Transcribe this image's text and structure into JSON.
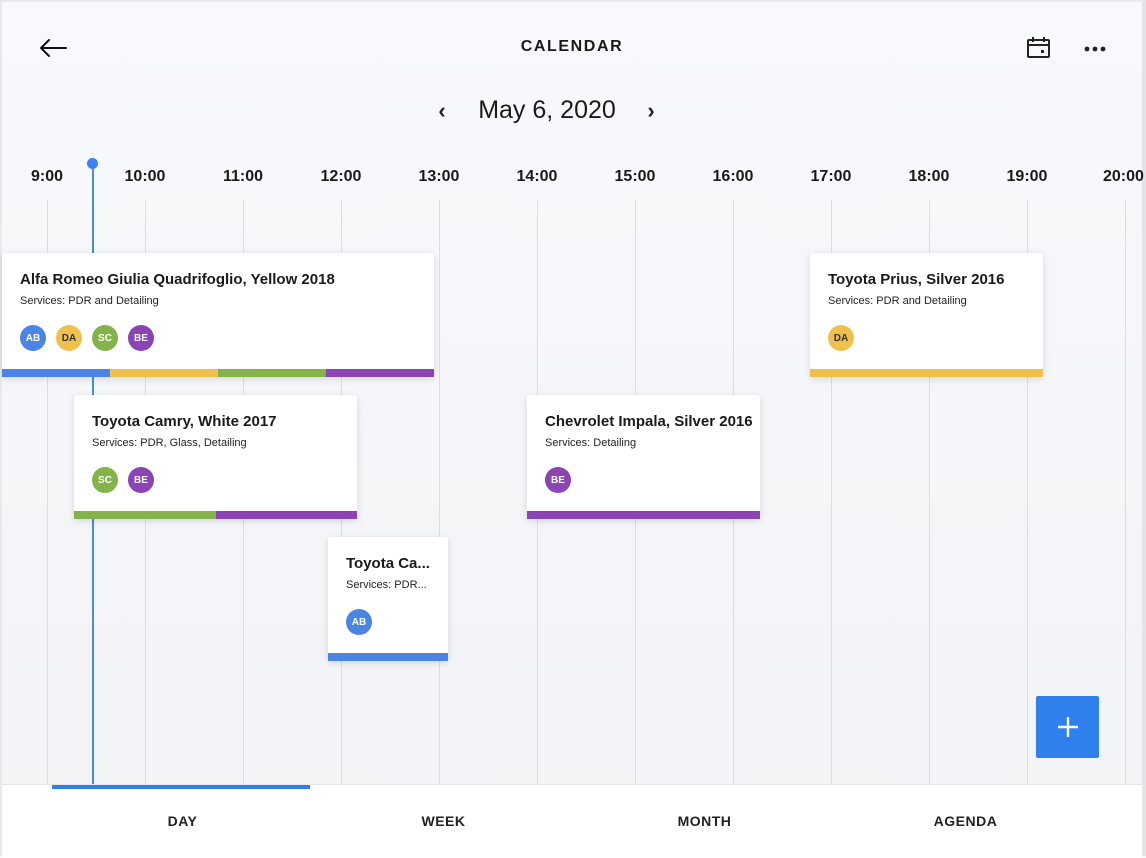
{
  "header": {
    "title": "CALENDAR",
    "back_icon": "arrow-left-icon",
    "calendar_icon": "calendar-icon",
    "more_icon": "more-horizontal-icon"
  },
  "date_nav": {
    "prev": "‹",
    "date": "May 6, 2020",
    "next": "›"
  },
  "hours": [
    "9:00",
    "10:00",
    "11:00",
    "12:00",
    "13:00",
    "14:00",
    "15:00",
    "16:00",
    "17:00",
    "18:00",
    "19:00",
    "20:00"
  ],
  "colors": {
    "blue": "#4a85e6",
    "yellow": "#f0c04d",
    "green": "#84b24b",
    "purple": "#8a44b3",
    "accent": "#2f80ed"
  },
  "events": [
    {
      "title": "Alfa Romeo Giulia Quadrifoglio, Yellow 2018",
      "services": "Services: PDR and Detailing",
      "avatars": [
        {
          "initials": "AB",
          "color": "#4a85e6"
        },
        {
          "initials": "DA",
          "color": "#f0c04d"
        },
        {
          "initials": "SC",
          "color": "#84b24b"
        },
        {
          "initials": "BE",
          "color": "#8a44b3"
        }
      ]
    },
    {
      "title": "Toyota Camry, White 2017",
      "services": "Services: PDR, Glass, Detailing",
      "avatars": [
        {
          "initials": "SC",
          "color": "#84b24b"
        },
        {
          "initials": "BE",
          "color": "#8a44b3"
        }
      ]
    },
    {
      "title": "Toyota Ca...",
      "services": "Services: PDR...",
      "avatars": [
        {
          "initials": "AB",
          "color": "#4a85e6"
        }
      ]
    },
    {
      "title": "Chevrolet Impala, Silver 2016",
      "services": "Services: Detailing",
      "avatars": [
        {
          "initials": "BE",
          "color": "#8a44b3"
        }
      ]
    },
    {
      "title": "Toyota Prius, Silver 2016",
      "services": "Services: PDR and Detailing",
      "avatars": [
        {
          "initials": "DA",
          "color": "#f0c04d"
        }
      ]
    }
  ],
  "fab": {
    "icon": "plus-icon"
  },
  "tabs": [
    {
      "label": "DAY",
      "active": true
    },
    {
      "label": "WEEK",
      "active": false
    },
    {
      "label": "MONTH",
      "active": false
    },
    {
      "label": "AGENDA",
      "active": false
    }
  ]
}
